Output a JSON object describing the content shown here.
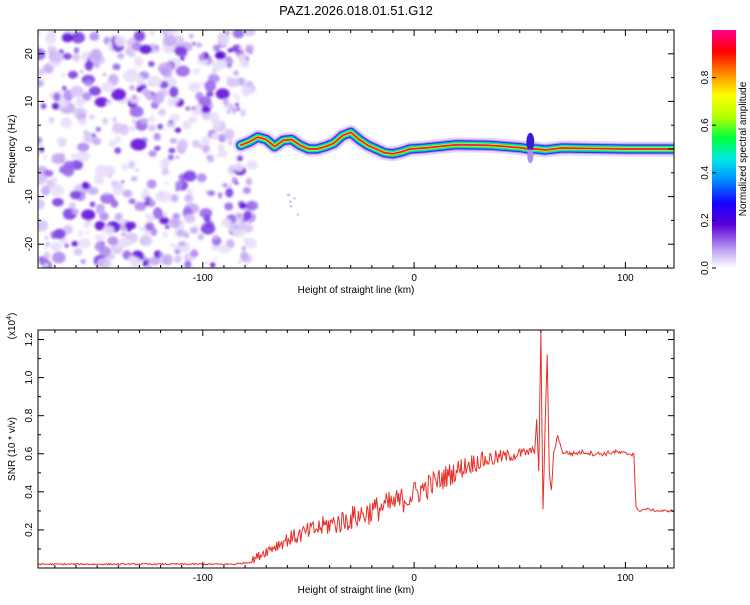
{
  "title": "PAZ1.2026.018.01.51.G12",
  "colors": {
    "snr_line": "#e8302a",
    "axis": "#000000"
  },
  "chart_data": [
    {
      "type": "heatmap",
      "title": "PAZ1.2026.018.01.51.G12",
      "xlabel": "Height of straight line (km)",
      "ylabel": "Frequency (Hz)",
      "xlim": [
        -178,
        123
      ],
      "ylim": [
        -25,
        25
      ],
      "x_ticks": [
        {
          "v": -100,
          "label": "-100"
        },
        {
          "v": 0,
          "label": "0"
        },
        {
          "v": 100,
          "label": "100"
        }
      ],
      "y_ticks": [
        {
          "v": -20,
          "label": "-20"
        },
        {
          "v": -10,
          "label": "-10"
        },
        {
          "v": 0,
          "label": "0"
        },
        {
          "v": 10,
          "label": "10"
        },
        {
          "v": 20,
          "label": "20"
        }
      ],
      "noise_region_x": [
        -178,
        -80
      ],
      "ridge": {
        "description": "dominant frequency vs height",
        "x": [
          -82,
          -78,
          -74,
          -70,
          -66,
          -62,
          -58,
          -54,
          -50,
          -46,
          -42,
          -38,
          -34,
          -30,
          -26,
          -22,
          -18,
          -14,
          -10,
          -6,
          -2,
          5,
          20,
          35,
          50,
          54,
          58,
          62,
          70,
          85,
          100,
          123
        ],
        "y": [
          0.8,
          1.5,
          2.5,
          2.0,
          0.5,
          1.8,
          2.0,
          0.8,
          0.0,
          0.0,
          0.5,
          1.2,
          2.8,
          3.5,
          2.0,
          0.8,
          0.0,
          -0.8,
          -1.0,
          -0.6,
          0.0,
          0.2,
          0.9,
          0.8,
          0.3,
          0.0,
          0.0,
          -0.2,
          0.2,
          0.1,
          0.0,
          0.0
        ]
      },
      "colorbar": {
        "label": "Normalized spectral amplitude",
        "range": [
          0.0,
          1.0
        ],
        "ticks": [
          {
            "v": 0.0,
            "label": "0.0"
          },
          {
            "v": 0.2,
            "label": "0.2"
          },
          {
            "v": 0.4,
            "label": "0.4"
          },
          {
            "v": 0.6,
            "label": "0.6"
          },
          {
            "v": 0.8,
            "label": "0.8"
          }
        ],
        "colormap": [
          "#ffffff",
          "#b18cf0",
          "#5b00d6",
          "#1400ff",
          "#0088ff",
          "#00e8e8",
          "#00ff40",
          "#b4ff00",
          "#ffff00",
          "#ff8800",
          "#ff0000",
          "#ff0090"
        ]
      }
    },
    {
      "type": "line",
      "xlabel": "Height of straight line (km)",
      "ylabel": "SNR (10 * v/v)",
      "y_multiplier": "(x10",
      "y_multiplier_exp": "4",
      "xlim": [
        -178,
        123
      ],
      "ylim": [
        0,
        1.25
      ],
      "x_ticks": [
        {
          "v": -100,
          "label": "-100"
        },
        {
          "v": 0,
          "label": "0"
        },
        {
          "v": 100,
          "label": "100"
        }
      ],
      "y_ticks": [
        {
          "v": 0.2,
          "label": "0.2"
        },
        {
          "v": 0.4,
          "label": "0.4"
        },
        {
          "v": 0.6,
          "label": "0.6"
        },
        {
          "v": 0.8,
          "label": "0.8"
        },
        {
          "v": 1.0,
          "label": "1.0"
        },
        {
          "v": 1.2,
          "label": "1.2"
        }
      ],
      "series": [
        {
          "name": "SNR",
          "x": [
            -178,
            -150,
            -120,
            -100,
            -85,
            -78,
            -74,
            -70,
            -65,
            -60,
            -55,
            -50,
            -45,
            -40,
            -35,
            -30,
            -25,
            -20,
            -15,
            -10,
            -5,
            0,
            5,
            10,
            15,
            20,
            25,
            30,
            35,
            40,
            45,
            50,
            55,
            57,
            58,
            59,
            60,
            61,
            62,
            63,
            64,
            65,
            66,
            68,
            70,
            75,
            80,
            85,
            90,
            95,
            100,
            104,
            105,
            106,
            110,
            115,
            123
          ],
          "y": [
            0.02,
            0.02,
            0.02,
            0.02,
            0.02,
            0.03,
            0.06,
            0.09,
            0.12,
            0.15,
            0.17,
            0.19,
            0.21,
            0.23,
            0.24,
            0.26,
            0.28,
            0.3,
            0.32,
            0.34,
            0.36,
            0.39,
            0.42,
            0.45,
            0.48,
            0.51,
            0.54,
            0.56,
            0.57,
            0.58,
            0.59,
            0.6,
            0.61,
            0.62,
            0.78,
            0.5,
            1.24,
            0.3,
            0.75,
            1.12,
            0.5,
            0.4,
            0.6,
            0.7,
            0.61,
            0.6,
            0.61,
            0.6,
            0.6,
            0.61,
            0.6,
            0.6,
            0.32,
            0.3,
            0.31,
            0.3,
            0.3
          ]
        }
      ]
    }
  ]
}
